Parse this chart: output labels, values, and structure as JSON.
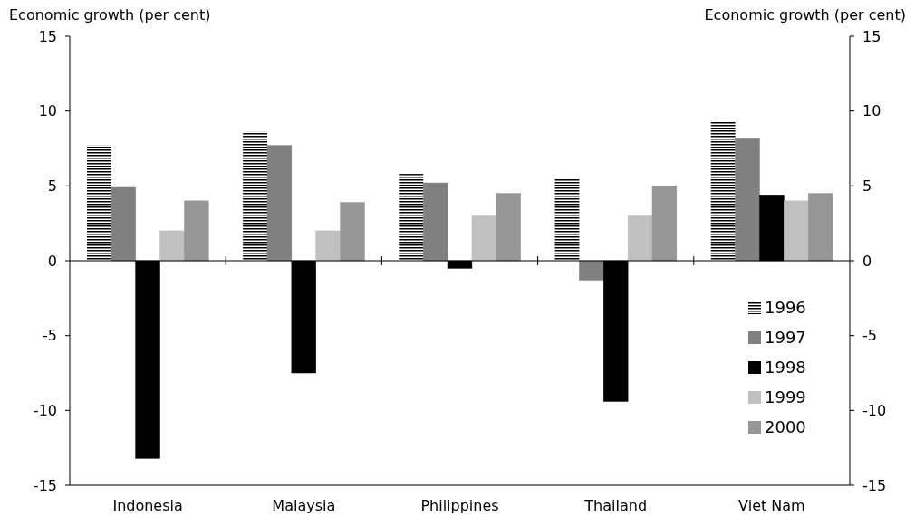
{
  "chart_data": {
    "type": "bar",
    "ylabel": "Economic growth  (per cent)",
    "y2label": "Economic growth  (per cent)",
    "categories": [
      "Indonesia",
      "Malaysia",
      "Philippines",
      "Thailand",
      "Viet Nam"
    ],
    "series": [
      {
        "name": "1996",
        "color": "#000000",
        "values": [
          7.7,
          8.6,
          5.8,
          5.5,
          9.3
        ]
      },
      {
        "name": "1997",
        "color": "#808080",
        "values": [
          4.9,
          7.7,
          5.2,
          -1.3,
          8.2
        ]
      },
      {
        "name": "1998",
        "color": "#000000",
        "values": [
          -13.2,
          -7.5,
          -0.5,
          -9.4,
          4.4
        ]
      },
      {
        "name": "1999",
        "color": "#c0c0c0",
        "values": [
          2.0,
          2.0,
          3.0,
          3.0,
          4.0
        ]
      },
      {
        "name": "2000",
        "color": "#969696",
        "values": [
          4.0,
          3.9,
          4.5,
          5.0,
          4.5
        ]
      }
    ],
    "ylim": [
      -15,
      15
    ],
    "yticks": [
      -15,
      -10,
      -5,
      0,
      5,
      10,
      15
    ],
    "y2lim": [
      -15,
      15
    ],
    "y2ticks": [
      -15,
      -10,
      -5,
      0,
      5,
      10,
      15
    ],
    "legend": "bottom right"
  }
}
